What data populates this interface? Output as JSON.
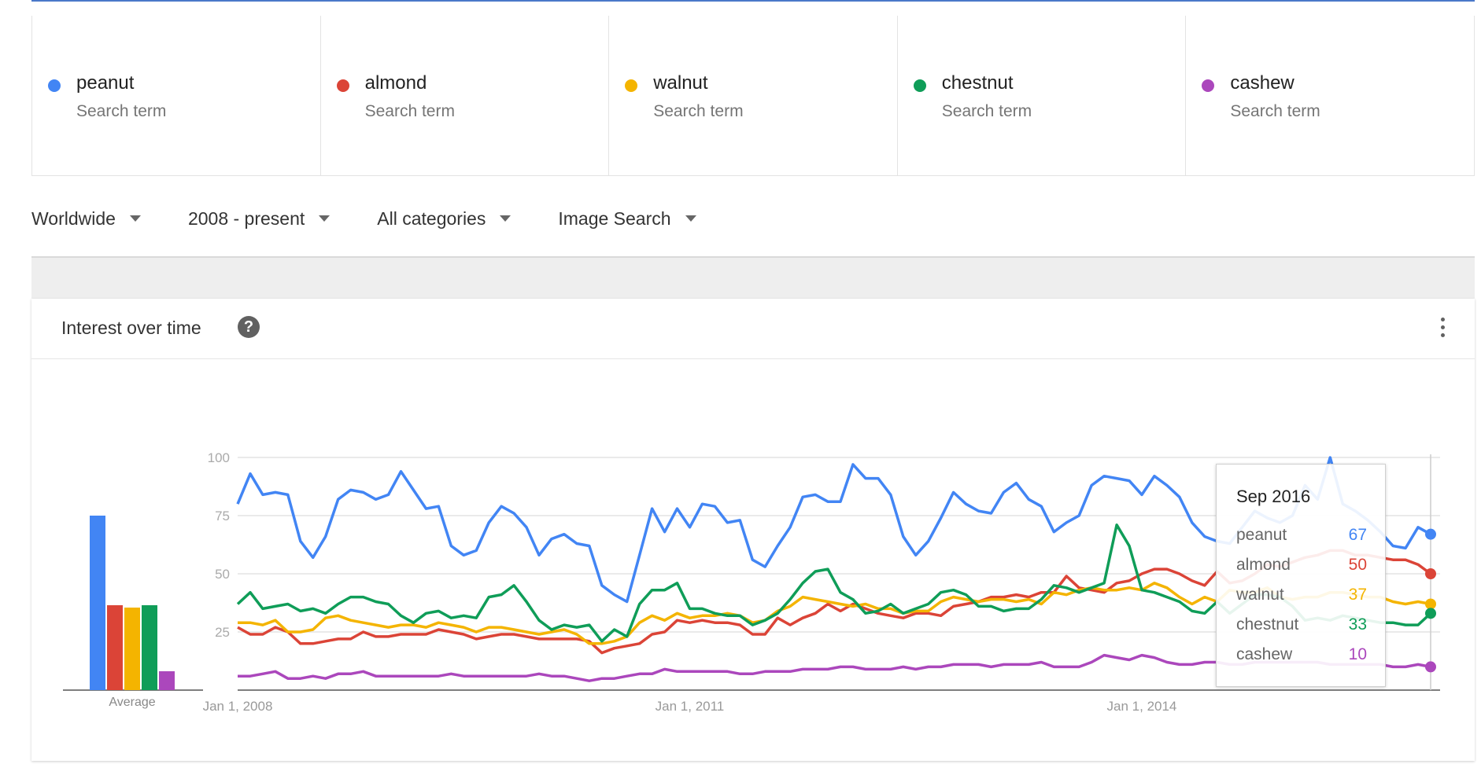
{
  "terms": [
    {
      "name": "peanut",
      "sub": "Search term",
      "color": "#4285f4"
    },
    {
      "name": "almond",
      "sub": "Search term",
      "color": "#db4437"
    },
    {
      "name": "walnut",
      "sub": "Search term",
      "color": "#f4b400"
    },
    {
      "name": "chestnut",
      "sub": "Search term",
      "color": "#0f9d58"
    },
    {
      "name": "cashew",
      "sub": "Search term",
      "color": "#ab47bc"
    }
  ],
  "filters": [
    {
      "label": "Worldwide"
    },
    {
      "label": "2008 - present"
    },
    {
      "label": "All categories"
    },
    {
      "label": "Image Search"
    }
  ],
  "panel": {
    "title": "Interest over time",
    "help_icon": "question-circle-icon",
    "more_icon": "more-vert-icon"
  },
  "tooltip": {
    "date": "Sep 2016",
    "rows": [
      {
        "label": "peanut",
        "value": "67",
        "color": "#4285f4"
      },
      {
        "label": "almond",
        "value": "50",
        "color": "#db4437"
      },
      {
        "label": "walnut",
        "value": "37",
        "color": "#f4b400"
      },
      {
        "label": "chestnut",
        "value": "33",
        "color": "#0f9d58"
      },
      {
        "label": "cashew",
        "value": "10",
        "color": "#ab47bc"
      }
    ]
  },
  "chart_data": [
    {
      "type": "bar",
      "xlabel": "Average",
      "categories": [
        "peanut",
        "almond",
        "walnut",
        "chestnut",
        "cashew"
      ],
      "values": [
        74,
        36,
        35,
        36,
        8
      ],
      "ylim": [
        0,
        100
      ],
      "colors": [
        "#4285f4",
        "#db4437",
        "#f4b400",
        "#0f9d58",
        "#ab47bc"
      ]
    },
    {
      "type": "line",
      "xlim": [
        "2008-01",
        "2016-09"
      ],
      "ylim": [
        0,
        100
      ],
      "yticks": [
        25,
        50,
        75,
        100
      ],
      "xtick_labels": [
        "Jan 1, 2008",
        "Jan 1, 2011",
        "Jan 1, 2014"
      ],
      "grid": true,
      "points_per_year": 12,
      "series": [
        {
          "name": "peanut",
          "color": "#4285f4",
          "values": [
            80,
            93,
            84,
            85,
            84,
            64,
            57,
            66,
            82,
            86,
            85,
            82,
            84,
            94,
            86,
            78,
            79,
            62,
            58,
            60,
            72,
            79,
            76,
            70,
            58,
            65,
            67,
            63,
            62,
            45,
            41,
            38,
            58,
            78,
            68,
            78,
            70,
            80,
            79,
            72,
            73,
            56,
            53,
            62,
            70,
            83,
            84,
            81,
            81,
            97,
            91,
            91,
            84,
            66,
            58,
            64,
            74,
            85,
            80,
            77,
            76,
            85,
            89,
            82,
            79,
            68,
            72,
            75,
            88,
            92,
            91,
            90,
            84,
            92,
            88,
            83,
            72,
            66,
            64,
            63,
            70,
            77,
            74,
            72,
            75,
            88,
            82,
            100,
            80,
            77,
            73,
            68,
            62,
            61,
            70,
            67
          ]
        },
        {
          "name": "almond",
          "color": "#db4437",
          "values": [
            27,
            24,
            24,
            27,
            25,
            20,
            20,
            21,
            22,
            22,
            25,
            23,
            23,
            24,
            24,
            24,
            26,
            25,
            24,
            22,
            23,
            24,
            24,
            23,
            22,
            22,
            22,
            22,
            21,
            16,
            18,
            19,
            20,
            24,
            25,
            30,
            29,
            30,
            29,
            29,
            28,
            24,
            24,
            31,
            28,
            31,
            33,
            37,
            34,
            37,
            35,
            33,
            32,
            31,
            33,
            33,
            32,
            36,
            37,
            38,
            40,
            40,
            41,
            40,
            42,
            42,
            49,
            44,
            43,
            42,
            46,
            47,
            50,
            52,
            52,
            50,
            47,
            45,
            51,
            46,
            47,
            50,
            54,
            53,
            55,
            57,
            58,
            60,
            60,
            58,
            58,
            57,
            56,
            56,
            54,
            50
          ]
        },
        {
          "name": "walnut",
          "color": "#f4b400",
          "values": [
            29,
            29,
            28,
            30,
            25,
            25,
            26,
            31,
            32,
            30,
            29,
            28,
            27,
            28,
            28,
            27,
            29,
            28,
            27,
            25,
            27,
            27,
            26,
            25,
            24,
            25,
            26,
            24,
            20,
            20,
            21,
            23,
            29,
            32,
            30,
            33,
            31,
            32,
            32,
            33,
            32,
            29,
            30,
            34,
            36,
            40,
            39,
            38,
            37,
            36,
            37,
            35,
            35,
            33,
            34,
            34,
            38,
            40,
            39,
            38,
            39,
            39,
            38,
            39,
            37,
            42,
            41,
            43,
            44,
            43,
            43,
            44,
            43,
            46,
            44,
            40,
            37,
            40,
            38,
            43,
            42,
            42,
            44,
            40,
            39,
            40,
            40,
            42,
            42,
            41,
            40,
            40,
            38,
            37,
            38,
            37
          ]
        },
        {
          "name": "chestnut",
          "color": "#0f9d58",
          "values": [
            37,
            42,
            35,
            36,
            37,
            34,
            35,
            33,
            37,
            40,
            40,
            38,
            37,
            32,
            29,
            33,
            34,
            31,
            32,
            31,
            40,
            41,
            45,
            38,
            30,
            26,
            28,
            27,
            28,
            21,
            26,
            23,
            37,
            43,
            43,
            46,
            35,
            35,
            33,
            32,
            32,
            28,
            30,
            33,
            39,
            46,
            51,
            52,
            42,
            39,
            33,
            34,
            37,
            33,
            35,
            37,
            42,
            43,
            41,
            36,
            36,
            34,
            35,
            35,
            39,
            45,
            44,
            42,
            44,
            46,
            71,
            62,
            43,
            42,
            40,
            38,
            34,
            33,
            38,
            33,
            37,
            41,
            41,
            40,
            36,
            30,
            31,
            30,
            32,
            31,
            30,
            29,
            29,
            28,
            28,
            33
          ]
        },
        {
          "name": "cashew",
          "color": "#ab47bc",
          "values": [
            6,
            6,
            7,
            8,
            5,
            5,
            6,
            5,
            7,
            7,
            8,
            6,
            6,
            6,
            6,
            6,
            6,
            7,
            6,
            6,
            6,
            6,
            6,
            6,
            7,
            6,
            6,
            5,
            4,
            5,
            5,
            6,
            7,
            7,
            9,
            8,
            8,
            8,
            8,
            8,
            7,
            7,
            8,
            8,
            8,
            9,
            9,
            9,
            10,
            10,
            9,
            9,
            9,
            10,
            9,
            10,
            10,
            11,
            11,
            11,
            10,
            11,
            11,
            11,
            12,
            10,
            10,
            10,
            12,
            15,
            14,
            13,
            15,
            14,
            12,
            11,
            11,
            12,
            12,
            11,
            11,
            12,
            12,
            12,
            12,
            12,
            12,
            11,
            11,
            11,
            11,
            11,
            10,
            10,
            11,
            10
          ]
        }
      ]
    }
  ]
}
